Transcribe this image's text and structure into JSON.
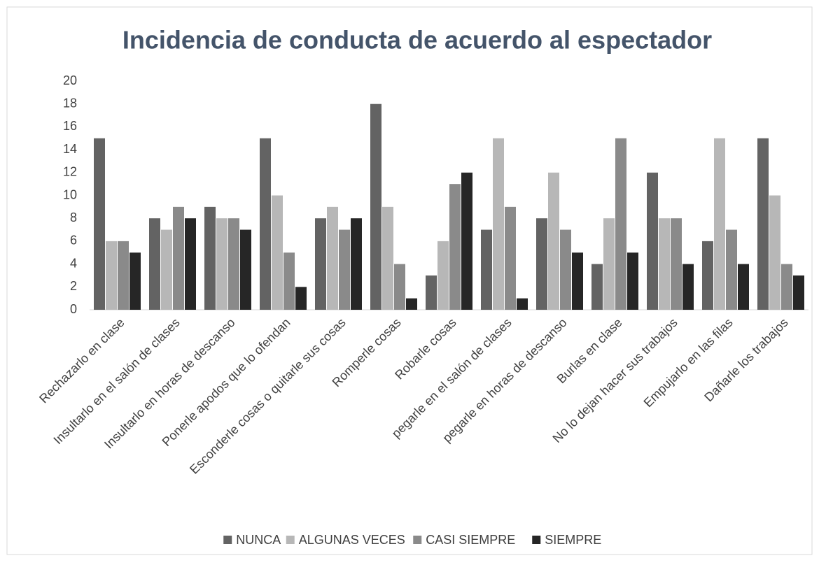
{
  "chart_data": {
    "type": "bar",
    "title": "Incidencia de conducta de acuerdo al espectador",
    "categories": [
      "Rechazarlo en clase",
      "Insultarlo en el salón de clases",
      "Insultarlo en horas de descanso",
      "Ponerle apodos que lo ofendan",
      "Esconderle cosas o quitarle sus cosas",
      "Romperle cosas",
      "Robarle cosas",
      "pegarle en el salón de clases",
      "pegarle en horas de descanso",
      "Burlas en clase",
      "No lo dejan hacer sus trabajos",
      "Empujarlo en las filas",
      "Dañarle los trabajos"
    ],
    "series": [
      {
        "name": "NUNCA",
        "color": "#636363",
        "values": [
          15,
          8,
          9,
          15,
          8,
          18,
          3,
          7,
          8,
          4,
          12,
          6,
          15
        ]
      },
      {
        "name": "ALGUNAS VECES",
        "color": "#b7b7b7",
        "values": [
          6,
          7,
          8,
          10,
          9,
          9,
          6,
          15,
          12,
          8,
          8,
          15,
          10
        ]
      },
      {
        "name": "CASI SIEMPRE",
        "color": "#8a8a8a",
        "values": [
          6,
          9,
          8,
          5,
          7,
          4,
          11,
          9,
          7,
          15,
          8,
          7,
          4
        ]
      },
      {
        "name": "SIEMPRE",
        "color": "#262626",
        "values": [
          5,
          8,
          7,
          2,
          8,
          1,
          12,
          1,
          5,
          5,
          4,
          4,
          3
        ]
      }
    ],
    "ylim": [
      0,
      20
    ],
    "yticks": [
      0,
      2,
      4,
      6,
      8,
      10,
      12,
      14,
      16,
      18,
      20
    ],
    "grid": false,
    "legend": "bottom"
  }
}
